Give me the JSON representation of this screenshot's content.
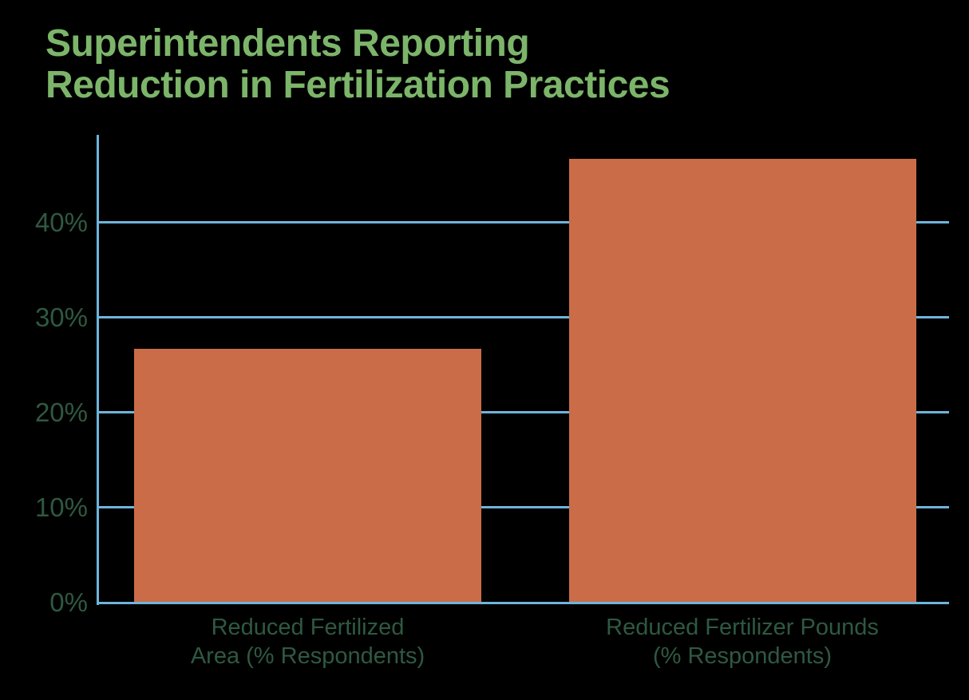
{
  "background": "#000000",
  "title": {
    "lines": [
      "Superintendents Reporting",
      "Reduction in Fertilization Practices"
    ],
    "color": "#7CB56A"
  },
  "colors": {
    "bar": "#CB6C49",
    "grid": "#6EB4DB",
    "axis": "#6EB4DB",
    "tick_label": "#2E5941",
    "category_label": "#2E5941"
  },
  "chart_data": {
    "type": "bar",
    "title": "Superintendents Reporting Reduction in Fertilization Practices",
    "categories": [
      "Reduced Fertilized Area (% Respondents)",
      "Reduced Fertilizer Pounds (% Respondents)"
    ],
    "category_lines": [
      [
        "Reduced Fertilized",
        "Area (% Respondents)"
      ],
      [
        "Reduced Fertilizer Pounds",
        "(% Respondents)"
      ]
    ],
    "values": [
      26.7,
      46.7
    ],
    "unit": "%",
    "y_ticks": [
      0,
      10,
      20,
      30,
      40
    ],
    "y_tick_labels": [
      "0%",
      "10%",
      "20%",
      "30%",
      "40%"
    ],
    "ylim": [
      0,
      49
    ],
    "grid": "horizontal-only",
    "legend": "none",
    "xlabel": "",
    "ylabel": ""
  }
}
